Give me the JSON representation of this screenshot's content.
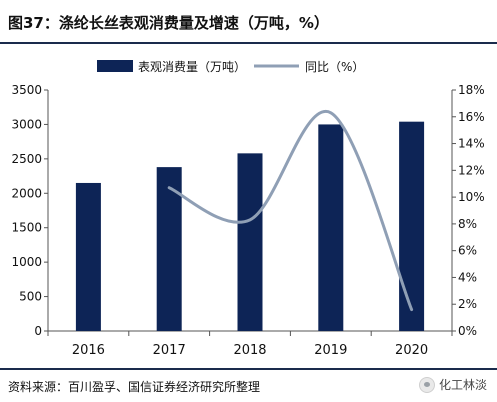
{
  "header": {
    "title": "图37：涤纶长丝表观消费量及增速（万吨，%）"
  },
  "footer": {
    "source": "资料来源：百川盈孚、国信证券经济研究所整理",
    "watermark": "化工林淡"
  },
  "colors": {
    "bar": "#0d2456",
    "line": "#8f9fb5",
    "border": "#1a2b4c"
  },
  "chart_data": {
    "type": "bar",
    "categories": [
      "2016",
      "2017",
      "2018",
      "2019",
      "2020"
    ],
    "series": [
      {
        "name": "表观消费量（万吨）",
        "type": "bar",
        "axis": "left",
        "values": [
          2150,
          2380,
          2580,
          3000,
          3040
        ]
      },
      {
        "name": "同比（%）",
        "type": "line",
        "axis": "right",
        "values": [
          null,
          10.7,
          8.3,
          16.3,
          1.6
        ]
      }
    ],
    "y_left": {
      "min": 0,
      "max": 3500,
      "ticks": [
        "0",
        "500",
        "1000",
        "1500",
        "2000",
        "2500",
        "3000",
        "3500"
      ]
    },
    "y_right": {
      "min": 0,
      "max": 18,
      "ticks": [
        "0%",
        "2%",
        "4%",
        "6%",
        "8%",
        "10%",
        "12%",
        "14%",
        "16%",
        "18%"
      ]
    },
    "legend_position": "top",
    "grid": false
  }
}
